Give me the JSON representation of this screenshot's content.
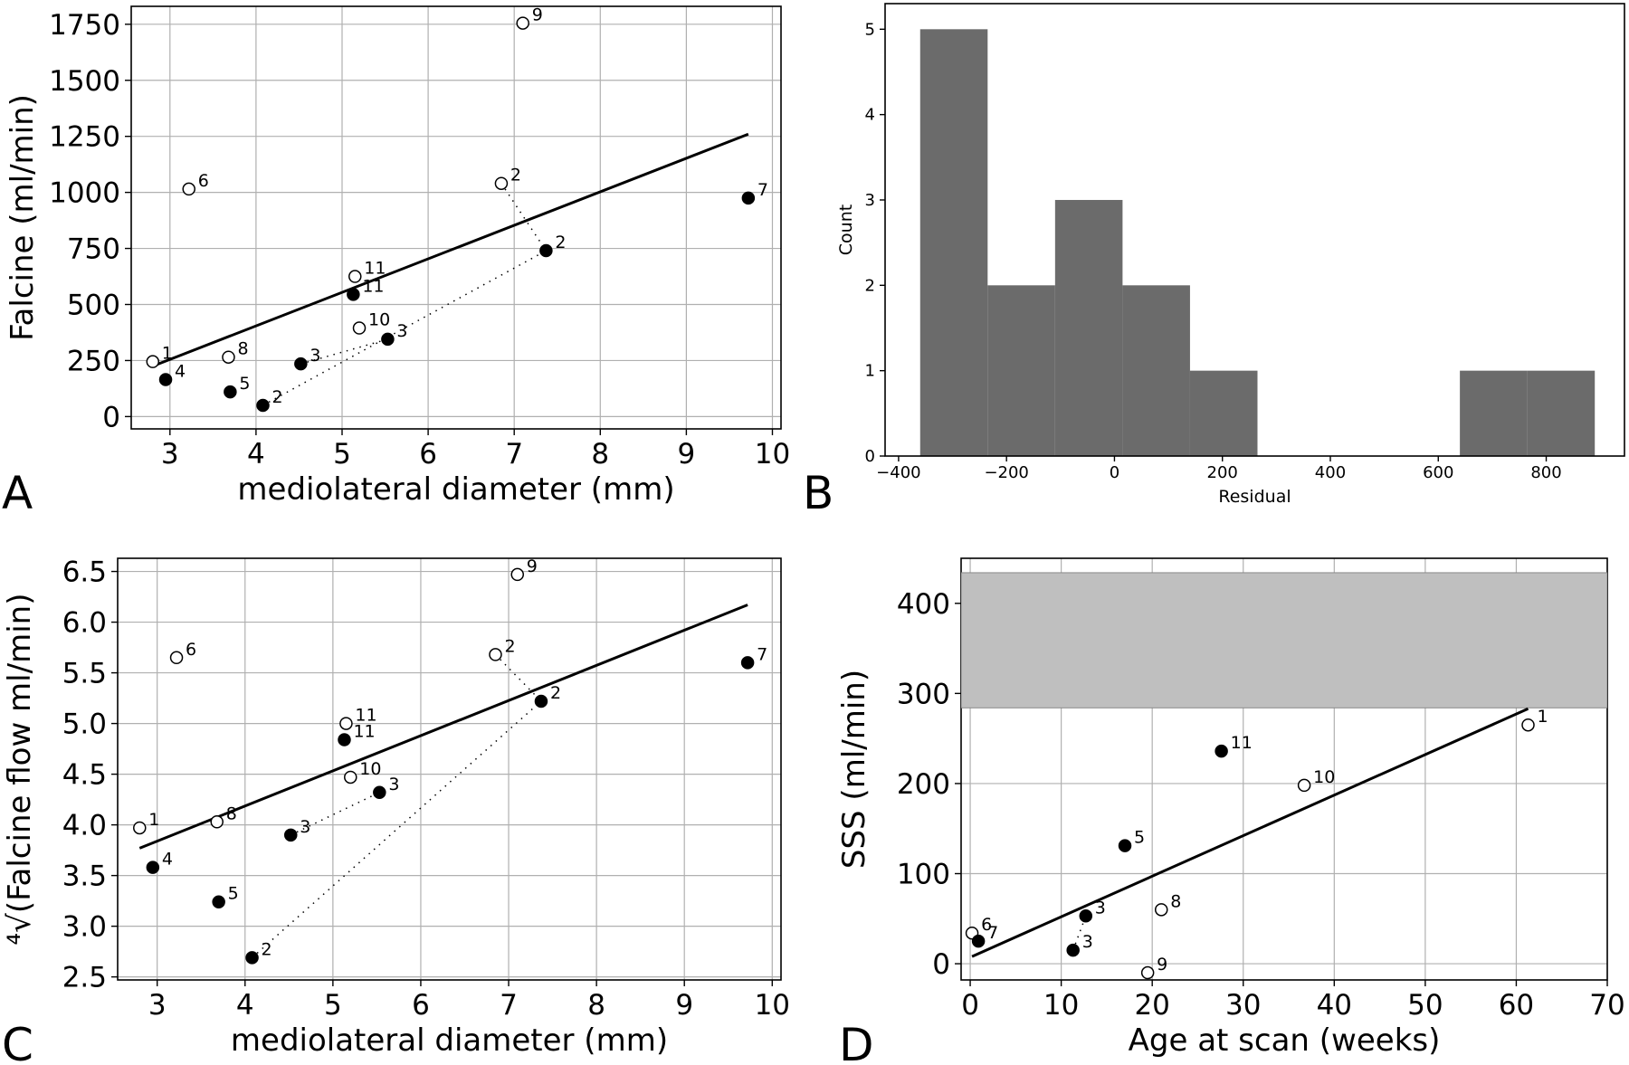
{
  "chart_data": [
    {
      "panel": "A",
      "type": "scatter",
      "xlabel": "mediolateral diameter (mm)",
      "ylabel": "Falcine (ml/min)",
      "xlim": [
        2.55,
        10.1
      ],
      "ylim": [
        -55,
        1830
      ],
      "xticks": [
        3,
        4,
        5,
        6,
        7,
        8,
        9,
        10
      ],
      "yticks": [
        0,
        250,
        500,
        750,
        1000,
        1250,
        1500,
        1750
      ],
      "grid": true,
      "series": [
        {
          "marker": "open",
          "points": [
            {
              "x": 2.8,
              "y": 245,
              "label": "1"
            },
            {
              "x": 6.85,
              "y": 1040,
              "label": "2"
            },
            {
              "x": 3.22,
              "y": 1015,
              "label": "6"
            },
            {
              "x": 3.68,
              "y": 265,
              "label": "8"
            },
            {
              "x": 7.1,
              "y": 1755,
              "label": "9"
            },
            {
              "x": 5.2,
              "y": 395,
              "label": "10"
            },
            {
              "x": 5.15,
              "y": 625,
              "label": "11"
            }
          ]
        },
        {
          "marker": "filled",
          "points": [
            {
              "x": 4.08,
              "y": 50,
              "label": "2"
            },
            {
              "x": 7.37,
              "y": 740,
              "label": "2"
            },
            {
              "x": 4.52,
              "y": 235,
              "label": "3"
            },
            {
              "x": 5.53,
              "y": 345,
              "label": "3"
            },
            {
              "x": 2.95,
              "y": 165,
              "label": "4"
            },
            {
              "x": 3.7,
              "y": 110,
              "label": "5"
            },
            {
              "x": 9.72,
              "y": 975,
              "label": "7"
            },
            {
              "x": 5.13,
              "y": 545,
              "label": "11"
            }
          ]
        }
      ],
      "fit_line": [
        [
          2.8,
          225
        ],
        [
          9.72,
          1260
        ]
      ],
      "dotted_links": [
        [
          [
            6.85,
            1040
          ],
          [
            7.37,
            740
          ]
        ],
        [
          [
            4.08,
            50
          ],
          [
            7.37,
            740
          ]
        ],
        [
          [
            4.52,
            235
          ],
          [
            5.53,
            345
          ]
        ]
      ]
    },
    {
      "panel": "B",
      "type": "bar",
      "xlabel": "Residual",
      "ylabel": "Count",
      "xlim": [
        -425,
        945
      ],
      "ylim": [
        0,
        5.3
      ],
      "xticks": [
        -400,
        -200,
        0,
        200,
        400,
        600,
        800
      ],
      "xtick_labels": [
        "−400",
        "−200",
        "0",
        "200",
        "400",
        "600",
        "800"
      ],
      "yticks": [
        0,
        1,
        2,
        3,
        4,
        5
      ],
      "grid": false,
      "bin_edges": [
        -360,
        -235,
        -110,
        15,
        140,
        265,
        390,
        515,
        640,
        765,
        890
      ],
      "values": [
        5,
        2,
        3,
        2,
        1,
        0,
        0,
        0,
        1,
        1
      ]
    },
    {
      "panel": "C",
      "type": "scatter",
      "xlabel": "mediolateral diameter (mm)",
      "ylabel": "⁴√(Falcine flow ml/min)",
      "xlim": [
        2.55,
        10.1
      ],
      "ylim": [
        2.47,
        6.63
      ],
      "xticks": [
        3,
        4,
        5,
        6,
        7,
        8,
        9,
        10
      ],
      "yticks": [
        2.5,
        3.0,
        3.5,
        4.0,
        4.5,
        5.0,
        5.5,
        6.0,
        6.5
      ],
      "ytick_labels": [
        "2.5",
        "3.0",
        "3.5",
        "4.0",
        "4.5",
        "5.0",
        "5.5",
        "6.0",
        "6.5"
      ],
      "grid": true,
      "series": [
        {
          "marker": "open",
          "points": [
            {
              "x": 2.8,
              "y": 3.97,
              "label": "1"
            },
            {
              "x": 6.85,
              "y": 5.68,
              "label": "2"
            },
            {
              "x": 3.22,
              "y": 5.65,
              "label": "6"
            },
            {
              "x": 3.68,
              "y": 4.03,
              "label": "8"
            },
            {
              "x": 7.1,
              "y": 6.47,
              "label": "9"
            },
            {
              "x": 5.2,
              "y": 4.47,
              "label": "10"
            },
            {
              "x": 5.15,
              "y": 5.0,
              "label": "11"
            }
          ]
        },
        {
          "marker": "filled",
          "points": [
            {
              "x": 4.08,
              "y": 2.69,
              "label": "2"
            },
            {
              "x": 7.37,
              "y": 5.22,
              "label": "2"
            },
            {
              "x": 4.52,
              "y": 3.9,
              "label": "3"
            },
            {
              "x": 5.53,
              "y": 4.32,
              "label": "3"
            },
            {
              "x": 2.95,
              "y": 3.58,
              "label": "4"
            },
            {
              "x": 3.7,
              "y": 3.24,
              "label": "5"
            },
            {
              "x": 9.72,
              "y": 5.6,
              "label": "7"
            },
            {
              "x": 5.13,
              "y": 4.84,
              "label": "11"
            }
          ]
        }
      ],
      "fit_line": [
        [
          2.8,
          3.77
        ],
        [
          9.72,
          6.17
        ]
      ],
      "dotted_links": [
        [
          [
            6.85,
            5.68
          ],
          [
            7.37,
            5.22
          ]
        ],
        [
          [
            4.08,
            2.69
          ],
          [
            7.37,
            5.22
          ]
        ],
        [
          [
            4.52,
            3.9
          ],
          [
            5.53,
            4.32
          ]
        ]
      ]
    },
    {
      "panel": "D",
      "type": "scatter",
      "xlabel": "Age at scan (weeks)",
      "ylabel": "SSS (ml/min)",
      "xlim": [
        -1,
        70
      ],
      "ylim": [
        -18,
        450
      ],
      "xticks": [
        0,
        10,
        20,
        30,
        40,
        50,
        60,
        70
      ],
      "yticks": [
        0,
        100,
        200,
        300,
        400
      ],
      "grid": true,
      "band": [
        284,
        434
      ],
      "series": [
        {
          "marker": "open",
          "points": [
            {
              "x": 61.3,
              "y": 265,
              "label": "1"
            },
            {
              "x": 0.2,
              "y": 34,
              "label": "6"
            },
            {
              "x": 21.0,
              "y": 60,
              "label": "8"
            },
            {
              "x": 19.5,
              "y": -10,
              "label": "9"
            },
            {
              "x": 36.7,
              "y": 198,
              "label": "10"
            }
          ]
        },
        {
          "marker": "filled",
          "points": [
            {
              "x": 11.3,
              "y": 15,
              "label": "3"
            },
            {
              "x": 12.7,
              "y": 53,
              "label": "3"
            },
            {
              "x": 17.0,
              "y": 131,
              "label": "5"
            },
            {
              "x": 0.9,
              "y": 25,
              "label": "7"
            },
            {
              "x": 27.6,
              "y": 236,
              "label": "11"
            }
          ]
        }
      ],
      "fit_line": [
        [
          0.2,
          8
        ],
        [
          61.3,
          283
        ]
      ],
      "dotted_links": [
        [
          [
            11.3,
            15
          ],
          [
            12.7,
            53
          ]
        ]
      ]
    }
  ],
  "panel_letters": [
    "A",
    "B",
    "C",
    "D"
  ]
}
